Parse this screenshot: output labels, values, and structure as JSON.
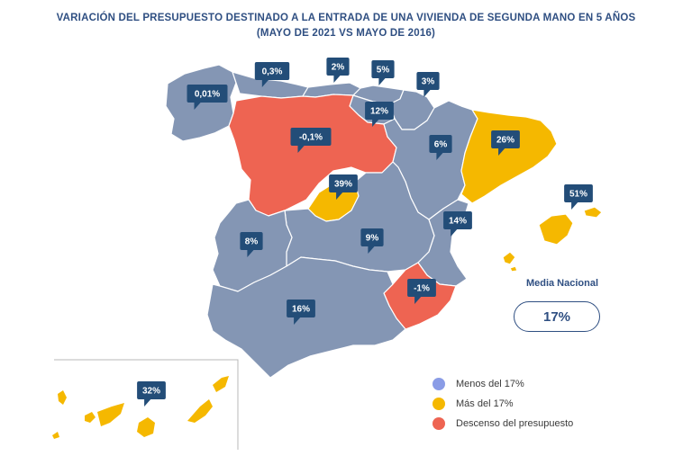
{
  "title": {
    "line1": "VARIACIÓN DEL PRESUPUESTO DESTINADO A LA ENTRADA DE UNA VIVIENDA DE SEGUNDA MANO EN 5 AÑOS",
    "line2": "(MAYO DE 2021 VS MAYO DE 2016)"
  },
  "colors": {
    "below_average": "#8496b4",
    "above_average": "#f5b800",
    "decrease": "#ee6452",
    "callout": "#234d78",
    "border": "#2f4f82"
  },
  "regions": [
    {
      "name": "Galicia",
      "value": "0,01%",
      "category": "below_average"
    },
    {
      "name": "Asturias",
      "value": "0,3%",
      "category": "below_average"
    },
    {
      "name": "Cantabria",
      "value": "2%",
      "category": "below_average"
    },
    {
      "name": "País Vasco",
      "value": "5%",
      "category": "below_average"
    },
    {
      "name": "Navarra",
      "value": "3%",
      "category": "below_average"
    },
    {
      "name": "La Rioja",
      "value": "12%",
      "category": "below_average"
    },
    {
      "name": "Castilla y León",
      "value": "-0,1%",
      "category": "decrease"
    },
    {
      "name": "Aragón",
      "value": "6%",
      "category": "below_average"
    },
    {
      "name": "Cataluña",
      "value": "26%",
      "category": "above_average"
    },
    {
      "name": "Madrid",
      "value": "39%",
      "category": "above_average"
    },
    {
      "name": "Baleares",
      "value": "51%",
      "category": "above_average"
    },
    {
      "name": "Comunidad Valenciana",
      "value": "14%",
      "category": "below_average"
    },
    {
      "name": "Extremadura",
      "value": "8%",
      "category": "below_average"
    },
    {
      "name": "Castilla-La Mancha",
      "value": "9%",
      "category": "below_average"
    },
    {
      "name": "Murcia",
      "value": "-1%",
      "category": "decrease"
    },
    {
      "name": "Andalucía",
      "value": "16%",
      "category": "below_average"
    },
    {
      "name": "Canarias",
      "value": "32%",
      "category": "above_average"
    }
  ],
  "national_average": {
    "label": "Media Nacional",
    "value": "17%"
  },
  "legend": [
    {
      "label": "Menos del 17%",
      "color": "#8a9ce6"
    },
    {
      "label": "Más del 17%",
      "color": "#f5b800"
    },
    {
      "label": "Descenso del presupuesto",
      "color": "#ee6452"
    }
  ]
}
